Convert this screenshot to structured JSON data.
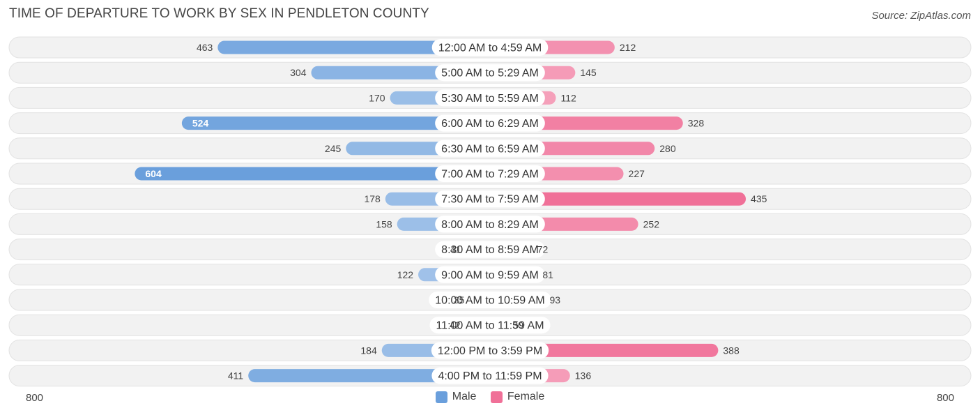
{
  "title": "TIME OF DEPARTURE TO WORK BY SEX IN PENDLETON COUNTY",
  "source": "Source: ZipAtlas.com",
  "colors": {
    "male_base": "#6a9fdc",
    "female_base": "#f07098",
    "row_bg": "#f2f2f2",
    "row_border": "#e2e2e2"
  },
  "legend": {
    "male": "Male",
    "female": "Female"
  },
  "axis": {
    "left_label": "800",
    "right_label": "800"
  },
  "chart_data": {
    "type": "bar",
    "orientation": "horizontal-diverging",
    "title": "TIME OF DEPARTURE TO WORK BY SEX IN PENDLETON COUNTY",
    "xlim": [
      -800,
      800
    ],
    "legend_position": "bottom-center",
    "categories": [
      "12:00 AM to 4:59 AM",
      "5:00 AM to 5:29 AM",
      "5:30 AM to 5:59 AM",
      "6:00 AM to 6:29 AM",
      "6:30 AM to 6:59 AM",
      "7:00 AM to 7:29 AM",
      "7:30 AM to 7:59 AM",
      "8:00 AM to 8:29 AM",
      "8:30 AM to 8:59 AM",
      "9:00 AM to 9:59 AM",
      "10:00 AM to 10:59 AM",
      "11:00 AM to 11:59 AM",
      "12:00 PM to 3:59 PM",
      "4:00 PM to 11:59 PM"
    ],
    "series": [
      {
        "name": "Male",
        "values": [
          463,
          304,
          170,
          524,
          245,
          604,
          178,
          158,
          41,
          122,
          35,
          42,
          184,
          411
        ]
      },
      {
        "name": "Female",
        "values": [
          212,
          145,
          112,
          328,
          280,
          227,
          435,
          252,
          72,
          81,
          93,
          30,
          388,
          136
        ]
      }
    ]
  }
}
